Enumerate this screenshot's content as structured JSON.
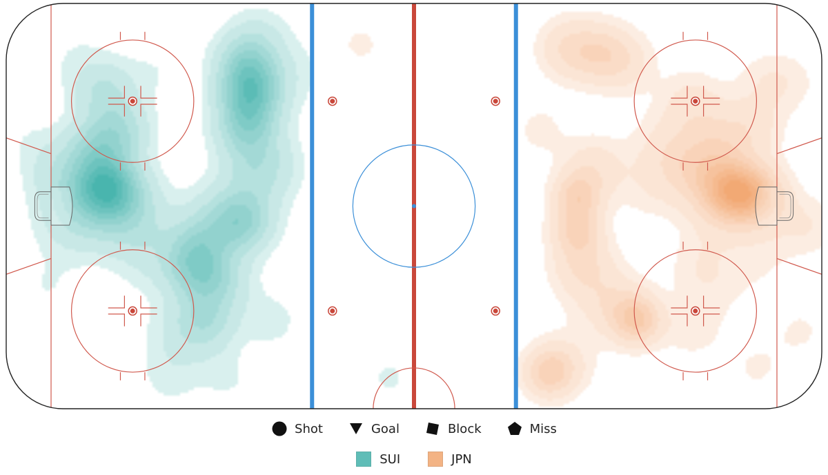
{
  "chart_data": {
    "type": "heatmap",
    "description_units": "rink coordinates in feet; x from -100 (left end boards) to 100 (right end boards), y from -42.5 to 42.5",
    "xlim": [
      -100,
      100
    ],
    "ylim": [
      -42.5,
      42.5
    ],
    "legend_markers": [
      {
        "shape": "circle",
        "label": "Shot"
      },
      {
        "shape": "triangle-down",
        "label": "Goal"
      },
      {
        "shape": "square",
        "label": "Block"
      },
      {
        "shape": "pentagon",
        "label": "Miss"
      }
    ],
    "teams": [
      {
        "name": "SUI",
        "color": "#2aa8a0"
      },
      {
        "name": "JPN",
        "color": "#f09a5c"
      }
    ],
    "series": [
      {
        "name": "SUI",
        "color": "#2aa8a0",
        "points": [
          {
            "x": -75,
            "y": 4,
            "w": 3.0,
            "s": 5
          },
          {
            "x": -80,
            "y": 2,
            "w": 2.0,
            "s": 7
          },
          {
            "x": -78,
            "y": 12,
            "w": 1.6,
            "s": 5
          },
          {
            "x": -72,
            "y": 16,
            "w": 1.4,
            "s": 5
          },
          {
            "x": -76,
            "y": 24,
            "w": 1.2,
            "s": 5
          },
          {
            "x": -70,
            "y": 0,
            "w": 1.0,
            "s": 6
          },
          {
            "x": -68,
            "y": -6,
            "w": 0.6,
            "s": 6
          },
          {
            "x": -88,
            "y": 8,
            "w": 0.5,
            "s": 5
          },
          {
            "x": -85,
            "y": -6,
            "w": 0.3,
            "s": 6
          },
          {
            "x": -90,
            "y": -17,
            "w": 0.25,
            "s": 5
          },
          {
            "x": -95,
            "y": 14,
            "w": 0.2,
            "s": 5
          },
          {
            "x": -83,
            "y": 31,
            "w": 0.25,
            "s": 6
          },
          {
            "x": -64,
            "y": 28,
            "w": 0.25,
            "s": 5
          },
          {
            "x": -40,
            "y": 24,
            "w": 3.0,
            "s": 5
          },
          {
            "x": -41,
            "y": 30,
            "w": 2.0,
            "s": 5
          },
          {
            "x": -41,
            "y": 17,
            "w": 2.2,
            "s": 5
          },
          {
            "x": -38,
            "y": 8,
            "w": 1.5,
            "s": 6
          },
          {
            "x": -42,
            "y": -3,
            "w": 2.0,
            "s": 5
          },
          {
            "x": -48,
            "y": -4,
            "w": 1.2,
            "s": 6
          },
          {
            "x": -54,
            "y": -9,
            "w": 1.4,
            "s": 5
          },
          {
            "x": -53,
            "y": -14,
            "w": 1.8,
            "s": 5
          },
          {
            "x": -51,
            "y": -24,
            "w": 1.4,
            "s": 5
          },
          {
            "x": -47,
            "y": -16,
            "w": 1.0,
            "s": 5
          },
          {
            "x": -57,
            "y": -27,
            "w": 0.6,
            "s": 6
          },
          {
            "x": -60,
            "y": -36,
            "w": 0.35,
            "s": 5
          },
          {
            "x": -46,
            "y": -36,
            "w": 0.3,
            "s": 5
          },
          {
            "x": -35,
            "y": -24,
            "w": 0.4,
            "s": 5
          },
          {
            "x": -30,
            "y": 28,
            "w": 0.35,
            "s": 6
          },
          {
            "x": -38,
            "y": 36,
            "w": 0.5,
            "s": 5
          },
          {
            "x": -63,
            "y": -12,
            "w": 0.4,
            "s": 6
          },
          {
            "x": -6,
            "y": -36,
            "w": 0.3,
            "s": 5
          }
        ]
      },
      {
        "name": "JPN",
        "color": "#f09a5c",
        "points": [
          {
            "x": 78,
            "y": 3,
            "w": 3.0,
            "s": 5
          },
          {
            "x": 84,
            "y": 2,
            "w": 2.0,
            "s": 5
          },
          {
            "x": 70,
            "y": 7,
            "w": 1.2,
            "s": 6
          },
          {
            "x": 76,
            "y": 14,
            "w": 0.9,
            "s": 6
          },
          {
            "x": 68,
            "y": 22,
            "w": 0.6,
            "s": 5
          },
          {
            "x": 63,
            "y": 13,
            "w": 0.55,
            "s": 6
          },
          {
            "x": 58,
            "y": 5,
            "w": 0.4,
            "s": 6
          },
          {
            "x": 40,
            "y": 2,
            "w": 1.6,
            "s": 4
          },
          {
            "x": 40,
            "y": -5,
            "w": 1.5,
            "s": 4
          },
          {
            "x": 41,
            "y": -12,
            "w": 0.9,
            "s": 5
          },
          {
            "x": 44,
            "y": 8,
            "w": 0.8,
            "s": 5
          },
          {
            "x": 45,
            "y": -18,
            "w": 0.5,
            "s": 6
          },
          {
            "x": 38,
            "y": 33,
            "w": 1.0,
            "s": 5
          },
          {
            "x": 46,
            "y": 32,
            "w": 1.1,
            "s": 5
          },
          {
            "x": 52,
            "y": 30,
            "w": 0.6,
            "s": 5
          },
          {
            "x": 55,
            "y": -24,
            "w": 1.7,
            "s": 4
          },
          {
            "x": 51,
            "y": -22,
            "w": 0.8,
            "s": 5
          },
          {
            "x": 33,
            "y": -35,
            "w": 1.6,
            "s": 4
          },
          {
            "x": 37,
            "y": -33,
            "w": 0.6,
            "s": 5
          },
          {
            "x": 68,
            "y": -26,
            "w": 0.35,
            "s": 5
          },
          {
            "x": 73,
            "y": -17,
            "w": 0.3,
            "s": 6
          },
          {
            "x": 86,
            "y": 26,
            "w": 0.35,
            "s": 5
          },
          {
            "x": 84,
            "y": 17,
            "w": 0.45,
            "s": 5
          },
          {
            "x": 92,
            "y": 26,
            "w": 0.3,
            "s": 5
          },
          {
            "x": 96,
            "y": -4,
            "w": 0.5,
            "s": 5
          },
          {
            "x": 84,
            "y": -10,
            "w": 0.3,
            "s": 6
          },
          {
            "x": 73,
            "y": -4,
            "w": 0.3,
            "s": 5
          },
          {
            "x": 84,
            "y": -34,
            "w": 0.25,
            "s": 6
          },
          {
            "x": 31,
            "y": 16,
            "w": 0.3,
            "s": 5
          },
          {
            "x": -13,
            "y": 34,
            "w": 0.35,
            "s": 3
          },
          {
            "x": 95,
            "y": -26,
            "w": 0.25,
            "s": 5
          },
          {
            "x": 70,
            "y": -12,
            "w": 0.3,
            "s": 5
          }
        ]
      }
    ]
  }
}
